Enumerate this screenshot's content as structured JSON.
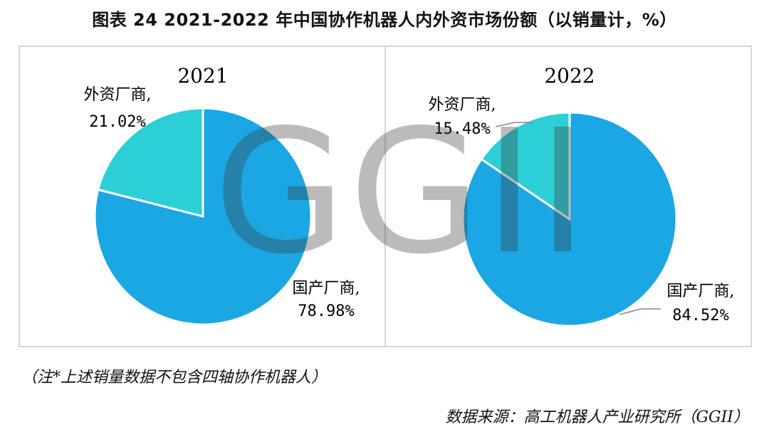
{
  "title": "图表 24  2021-2022 年中国协作机器人内外资市场份额（以销量计，%）",
  "watermark": "GGII",
  "note": "（注*上述销量数据不包含四轴协作机器人）",
  "source": "数据来源：高工机器人产业研究所（GGII）",
  "colors": {
    "domestic": "#1aa7e3",
    "foreign": "#2ccfd6",
    "border": "#d6d6d6"
  },
  "chart_data": [
    {
      "type": "pie",
      "title": "2021",
      "slices": [
        {
          "label": "国产厂商,",
          "value": 78.98,
          "value_label": "78.98%",
          "color": "#1aa7e3"
        },
        {
          "label": "外资厂商,",
          "value": 21.02,
          "value_label": "21.02%",
          "color": "#2ccfd6"
        }
      ]
    },
    {
      "type": "pie",
      "title": "2022",
      "slices": [
        {
          "label": "国产厂商,",
          "value": 84.52,
          "value_label": "84.52%",
          "color": "#1aa7e3"
        },
        {
          "label": "外资厂商,",
          "value": 15.48,
          "value_label": "15.48%",
          "color": "#2ccfd6"
        }
      ]
    }
  ]
}
